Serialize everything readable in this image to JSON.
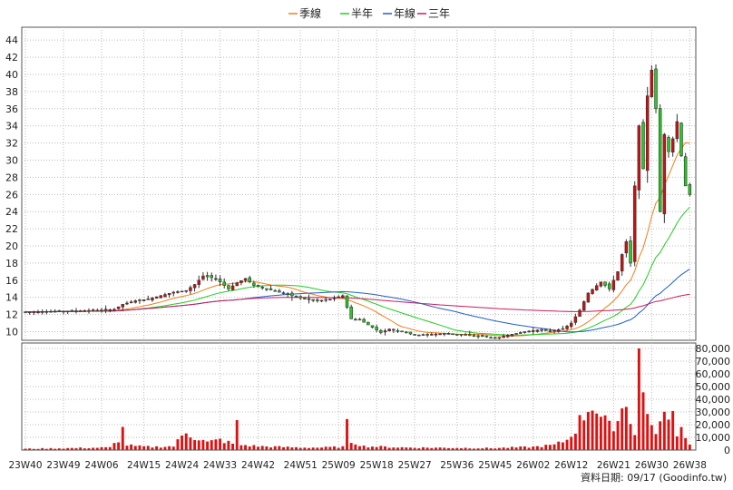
{
  "chart_data": {
    "type": "candlestick",
    "legend": [
      {
        "name": "季線",
        "color": "#f07f1a"
      },
      {
        "name": "半年",
        "color": "#22cc22"
      },
      {
        "name": "年線",
        "color": "#1f5fc8"
      },
      {
        "name": "三年",
        "color": "#cc1a5a"
      }
    ],
    "price_axis": {
      "min": 9,
      "max": 45.5,
      "ticks": [
        10,
        12,
        14,
        16,
        18,
        20,
        22,
        24,
        26,
        28,
        30,
        32,
        34,
        36,
        38,
        40,
        42,
        44
      ]
    },
    "volume_axis": {
      "min": 0,
      "max": 80000,
      "ticks": [
        0,
        10000,
        20000,
        30000,
        40000,
        50000,
        60000,
        70000,
        80000
      ],
      "tick_labels": [
        "0",
        "10,000",
        "20,000",
        "30,000",
        "40,000",
        "50,000",
        "60,000",
        "70,000",
        "80,000"
      ]
    },
    "x_labels": [
      "23W40",
      "23W49",
      "24W06",
      "24W15",
      "24W24",
      "24W33",
      "24W42",
      "24W51",
      "25W09",
      "25W18",
      "25W27",
      "25W36",
      "25W45",
      "26W02",
      "26W12",
      "26W21",
      "26W30",
      "26W38"
    ],
    "footer": "資料日期: 09/17  (Goodinfo.tw)",
    "price_anchors": [
      [
        0,
        12.3
      ],
      [
        9,
        12.4
      ],
      [
        18,
        12.5
      ],
      [
        21,
        12.6
      ],
      [
        23,
        13.2
      ],
      [
        26,
        13.6
      ],
      [
        29,
        13.8
      ],
      [
        32,
        14.2
      ],
      [
        35,
        14.6
      ],
      [
        38,
        14.8
      ],
      [
        40,
        15.5
      ],
      [
        42,
        16.5
      ],
      [
        45,
        16.2
      ],
      [
        48,
        15.0
      ],
      [
        50,
        15.7
      ],
      [
        52,
        16.2
      ],
      [
        54,
        15.4
      ],
      [
        57,
        15.0
      ],
      [
        60,
        14.6
      ],
      [
        63,
        14.2
      ],
      [
        66,
        13.8
      ],
      [
        69,
        13.6
      ],
      [
        72,
        13.8
      ],
      [
        75,
        14.2
      ],
      [
        77,
        11.5
      ],
      [
        79,
        11.4
      ],
      [
        82,
        10.5
      ],
      [
        84,
        9.9
      ],
      [
        86,
        10.3
      ],
      [
        89,
        10.0
      ],
      [
        92,
        9.6
      ],
      [
        96,
        9.7
      ],
      [
        100,
        9.8
      ],
      [
        104,
        9.6
      ],
      [
        108,
        9.5
      ],
      [
        111,
        9.2
      ],
      [
        114,
        9.6
      ],
      [
        118,
        10.0
      ],
      [
        121,
        10.2
      ],
      [
        124,
        10.1
      ],
      [
        127,
        10.3
      ],
      [
        129,
        11.0
      ],
      [
        131,
        12.5
      ],
      [
        133,
        14.5
      ],
      [
        136,
        15.8
      ],
      [
        138,
        15.0
      ],
      [
        140,
        17.0
      ],
      [
        141,
        19.0
      ],
      [
        142,
        20.5
      ],
      [
        143,
        18.0
      ],
      [
        144,
        27.0
      ],
      [
        145,
        34.0
      ],
      [
        146,
        29.0
      ],
      [
        147,
        37.5
      ],
      [
        148,
        40.5
      ],
      [
        149,
        36.0
      ],
      [
        150,
        24.0
      ],
      [
        151,
        33.0
      ],
      [
        152,
        31.0
      ],
      [
        153,
        32.5
      ],
      [
        154,
        34.5
      ],
      [
        155,
        30.5
      ],
      [
        156,
        27.0
      ],
      [
        157,
        26.0
      ]
    ],
    "volume_anchors": [
      [
        0,
        1000
      ],
      [
        10,
        1500
      ],
      [
        20,
        2000
      ],
      [
        22,
        8000
      ],
      [
        23,
        16000
      ],
      [
        24,
        4000
      ],
      [
        26,
        3000
      ],
      [
        30,
        2500
      ],
      [
        35,
        3000
      ],
      [
        38,
        15000
      ],
      [
        40,
        10000
      ],
      [
        43,
        6000
      ],
      [
        46,
        8000
      ],
      [
        49,
        5000
      ],
      [
        50,
        20000
      ],
      [
        51,
        4000
      ],
      [
        55,
        3000
      ],
      [
        60,
        2500
      ],
      [
        65,
        2000
      ],
      [
        70,
        2000
      ],
      [
        75,
        2500
      ],
      [
        76,
        19000
      ],
      [
        77,
        7000
      ],
      [
        80,
        3000
      ],
      [
        85,
        2500
      ],
      [
        90,
        2000
      ],
      [
        100,
        1800
      ],
      [
        110,
        1500
      ],
      [
        120,
        2500
      ],
      [
        125,
        4000
      ],
      [
        128,
        8000
      ],
      [
        130,
        17000
      ],
      [
        132,
        28000
      ],
      [
        134,
        38000
      ],
      [
        136,
        26000
      ],
      [
        138,
        18000
      ],
      [
        140,
        24000
      ],
      [
        142,
        40000
      ],
      [
        143,
        26000
      ],
      [
        144,
        12000
      ],
      [
        145,
        80000
      ],
      [
        146,
        45000
      ],
      [
        147,
        35000
      ],
      [
        148,
        18000
      ],
      [
        149,
        10000
      ],
      [
        150,
        30000
      ],
      [
        151,
        28000
      ],
      [
        152,
        20000
      ],
      [
        153,
        29000
      ],
      [
        154,
        15000
      ],
      [
        155,
        17000
      ],
      [
        156,
        12000
      ],
      [
        157,
        5000
      ]
    ]
  }
}
